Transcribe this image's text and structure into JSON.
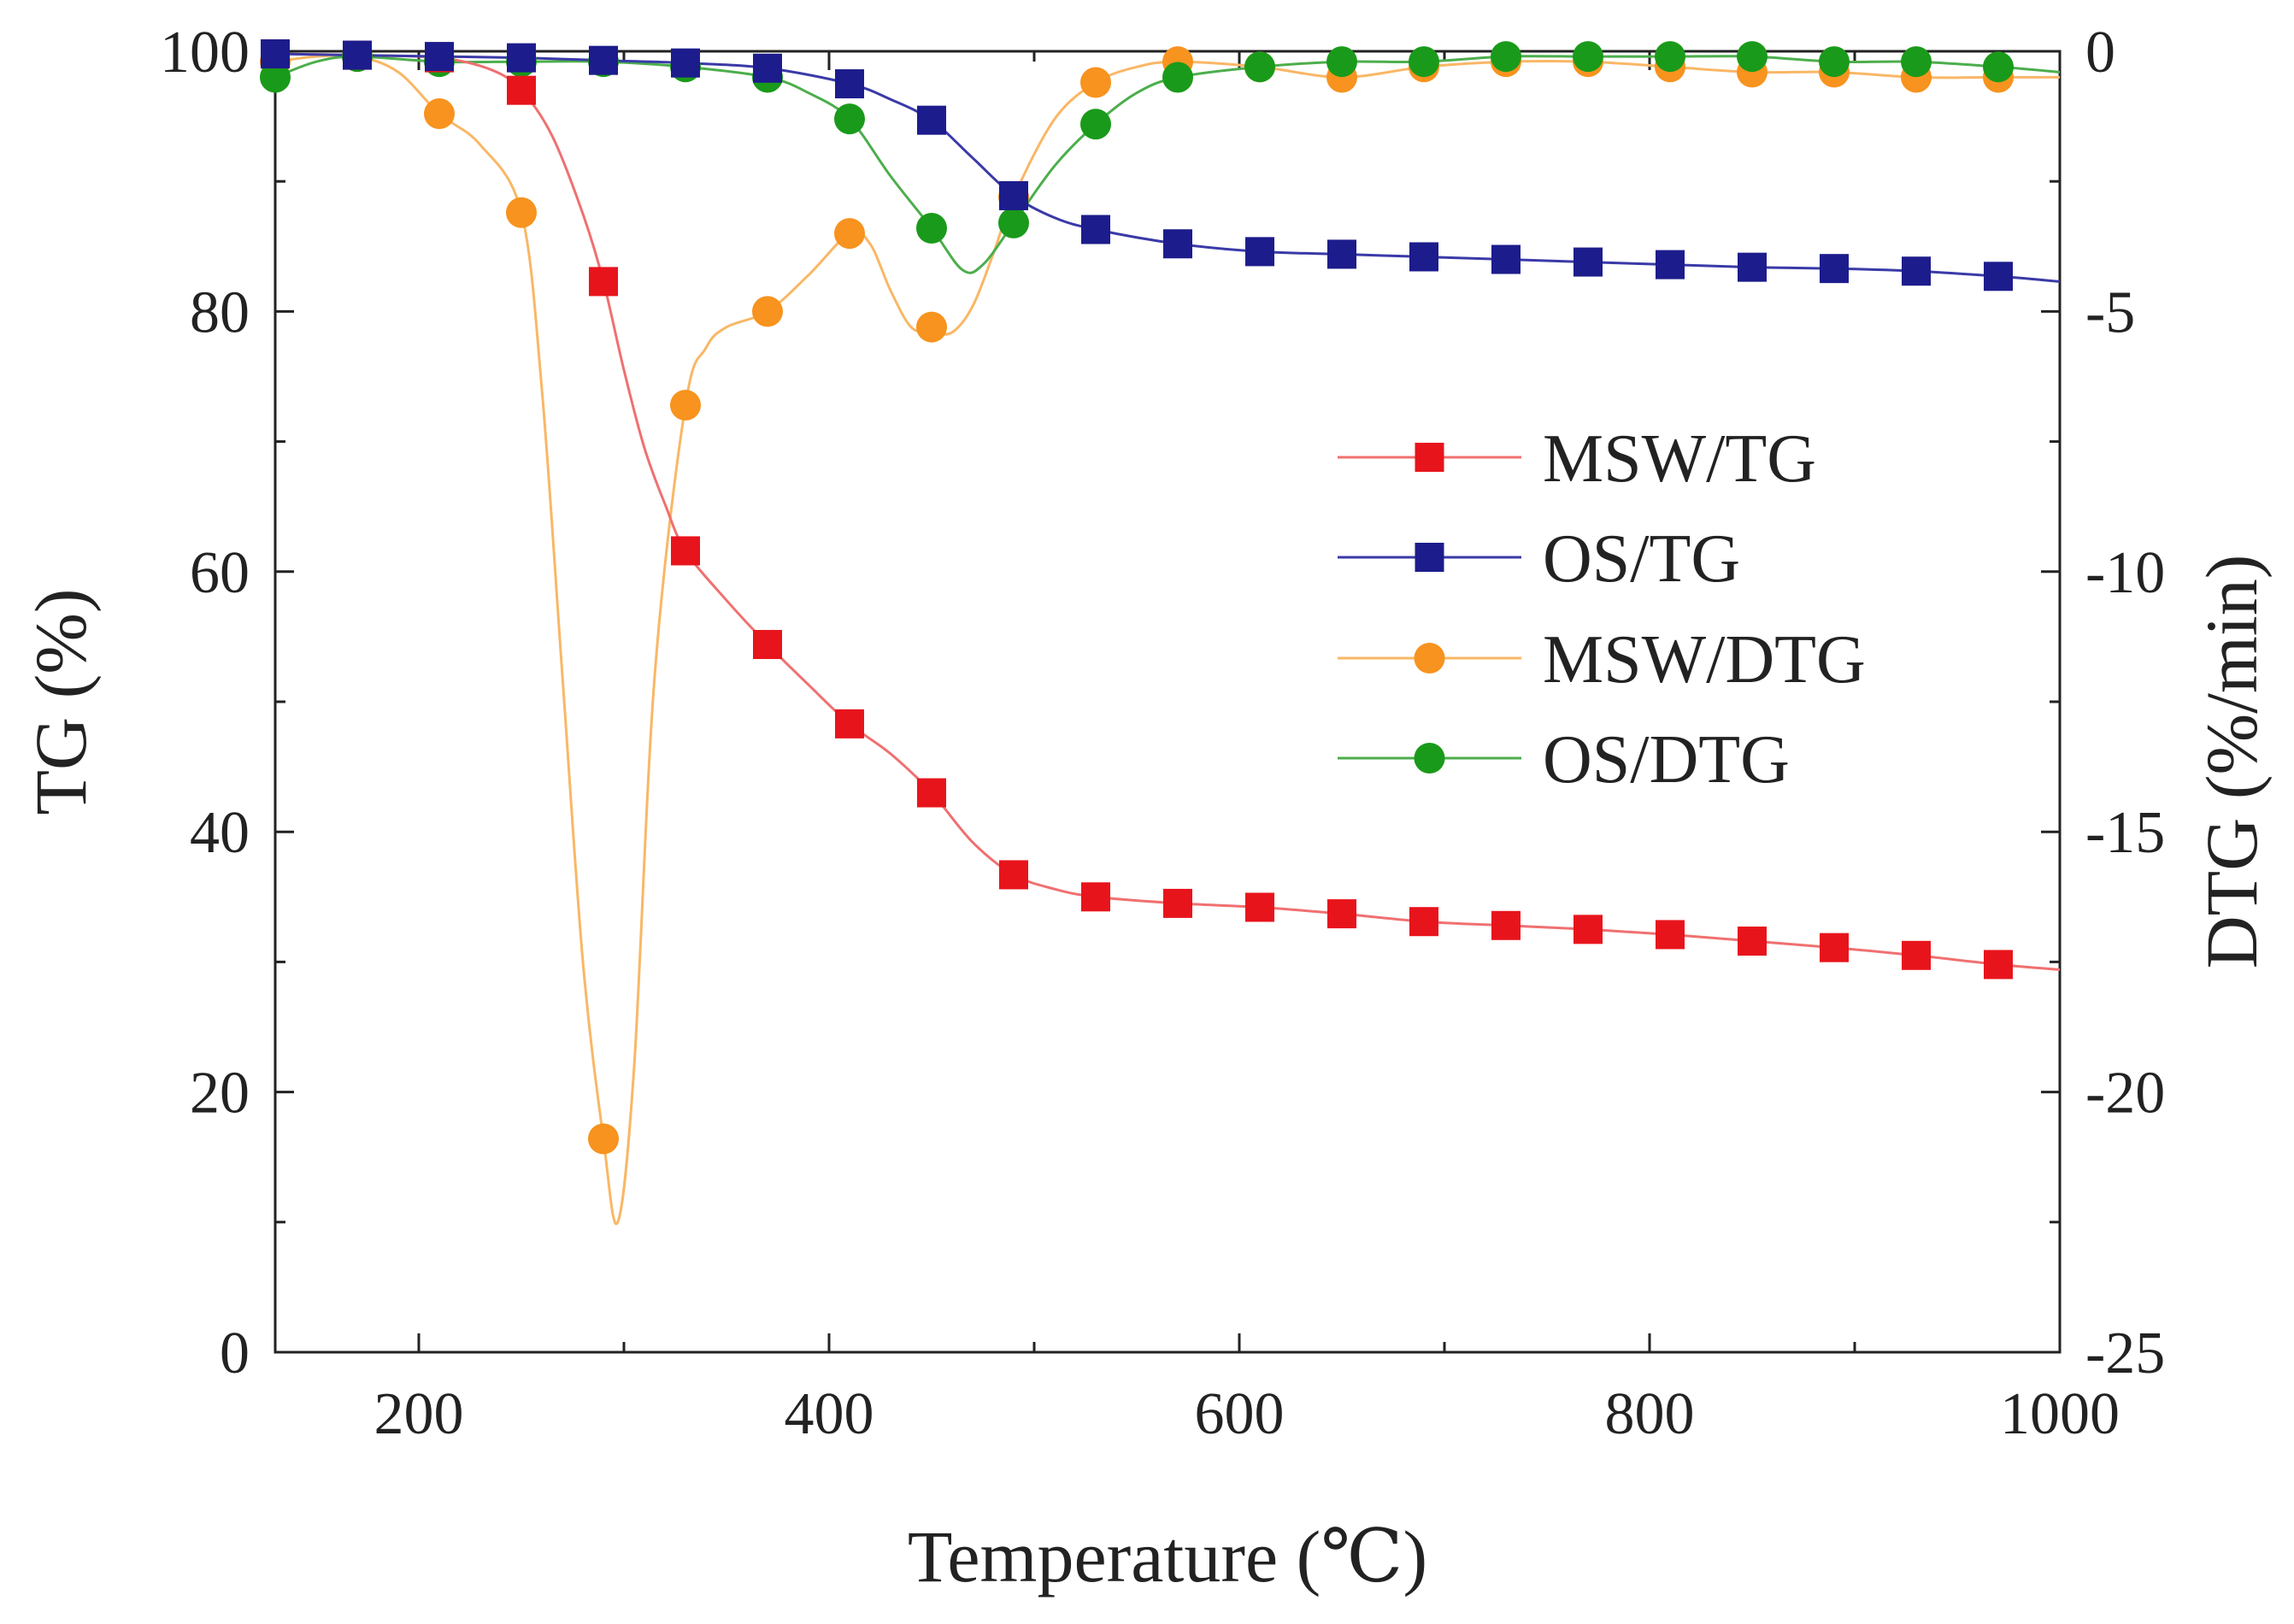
{
  "chart_data": {
    "type": "line",
    "xlabel": "Temperature (℃)",
    "ylabel_left": "TG (%)",
    "ylabel_right": "DTG (%/min)",
    "xlim": [
      130,
      1000
    ],
    "ylim_left": [
      0,
      100
    ],
    "ylim_right": [
      -25,
      0
    ],
    "x_ticks": [
      200,
      400,
      600,
      800,
      1000
    ],
    "y_left_ticks": [
      0,
      20,
      40,
      60,
      80,
      100
    ],
    "y_right_ticks": [
      0,
      -5,
      -10,
      -15,
      -20,
      -25
    ],
    "grid": false,
    "legend_position": "center-right",
    "series": [
      {
        "name": "MSW/TG",
        "axis": "left",
        "marker": "square",
        "color": "#e8141c",
        "line_color": "#f07070",
        "x": [
          130,
          170,
          210,
          250,
          290,
          330,
          370,
          410,
          450,
          490,
          530,
          570,
          610,
          650,
          690,
          730,
          770,
          810,
          850,
          890,
          930,
          970
        ],
        "values": [
          99.8,
          99.7,
          99.5,
          97.0,
          82.3,
          61.6,
          54.4,
          48.3,
          43.0,
          36.7,
          35.0,
          34.5,
          34.2,
          33.7,
          33.1,
          32.8,
          32.5,
          32.1,
          31.6,
          31.1,
          30.5,
          29.8
        ],
        "curve_x": [
          130,
          170,
          210,
          235,
          250,
          265,
          280,
          290,
          300,
          310,
          320,
          330,
          350,
          370,
          390,
          410,
          430,
          450,
          470,
          490,
          510,
          530,
          570,
          610,
          650,
          690,
          730,
          770,
          810,
          850,
          890,
          930,
          970,
          1000
        ],
        "curve": [
          99.8,
          99.7,
          99.5,
          98.6,
          97.0,
          93.5,
          87.5,
          82.3,
          75.5,
          69.5,
          65.2,
          61.6,
          57.8,
          54.4,
          51.3,
          48.3,
          46.0,
          43.0,
          39.2,
          36.7,
          35.6,
          35.0,
          34.5,
          34.2,
          33.7,
          33.1,
          32.8,
          32.5,
          32.1,
          31.6,
          31.1,
          30.5,
          29.8,
          29.4
        ]
      },
      {
        "name": "OS/TG",
        "axis": "left",
        "marker": "square",
        "color": "#1c1c8c",
        "line_color": "#3a3aa8",
        "x": [
          130,
          170,
          210,
          250,
          290,
          330,
          370,
          410,
          450,
          490,
          530,
          570,
          610,
          650,
          690,
          730,
          770,
          810,
          850,
          890,
          930,
          970
        ],
        "values": [
          99.8,
          99.7,
          99.6,
          99.5,
          99.3,
          99.1,
          98.7,
          97.5,
          94.7,
          88.9,
          86.3,
          85.2,
          84.6,
          84.4,
          84.2,
          84.0,
          83.8,
          83.6,
          83.4,
          83.3,
          83.1,
          82.7
        ],
        "curve_x": [
          130,
          170,
          210,
          250,
          290,
          330,
          370,
          410,
          430,
          450,
          470,
          490,
          510,
          530,
          570,
          610,
          650,
          690,
          730,
          770,
          810,
          850,
          890,
          930,
          970,
          1000
        ],
        "curve": [
          99.8,
          99.7,
          99.6,
          99.5,
          99.3,
          99.1,
          98.7,
          97.5,
          96.3,
          94.7,
          91.8,
          88.9,
          87.2,
          86.3,
          85.2,
          84.6,
          84.4,
          84.2,
          84.0,
          83.8,
          83.6,
          83.4,
          83.3,
          83.1,
          82.7,
          82.3
        ]
      },
      {
        "name": "MSW/DTG",
        "axis": "right",
        "marker": "circle",
        "color": "#f7931e",
        "line_color": "#f9b766",
        "x": [
          130,
          170,
          210,
          250,
          290,
          330,
          370,
          410,
          450,
          490,
          530,
          570,
          610,
          650,
          690,
          730,
          770,
          810,
          850,
          890,
          930,
          970
        ],
        "values": [
          -0.2,
          -0.1,
          -1.2,
          -3.1,
          -20.9,
          -6.8,
          -5.0,
          -3.5,
          -5.3,
          -2.8,
          -0.6,
          -0.2,
          -0.3,
          -0.5,
          -0.3,
          -0.2,
          -0.2,
          -0.3,
          -0.4,
          -0.4,
          -0.5,
          -0.5
        ],
        "curve_x": [
          130,
          150,
          170,
          190,
          210,
          230,
          250,
          260,
          270,
          280,
          290,
          297,
          305,
          315,
          330,
          340,
          350,
          370,
          390,
          410,
          420,
          430,
          440,
          450,
          460,
          470,
          480,
          490,
          510,
          530,
          550,
          570,
          610,
          650,
          690,
          730,
          770,
          810,
          850,
          890,
          930,
          970,
          1000
        ],
        "curve": [
          -0.2,
          -0.1,
          -0.1,
          -0.4,
          -1.2,
          -1.8,
          -3.1,
          -6.5,
          -12.0,
          -17.5,
          -20.9,
          -22.5,
          -19.5,
          -12.0,
          -6.8,
          -5.7,
          -5.3,
          -5.0,
          -4.3,
          -3.5,
          -3.7,
          -4.6,
          -5.3,
          -5.4,
          -5.4,
          -4.9,
          -3.9,
          -2.8,
          -1.3,
          -0.6,
          -0.3,
          -0.2,
          -0.3,
          -0.5,
          -0.3,
          -0.2,
          -0.2,
          -0.3,
          -0.4,
          -0.4,
          -0.5,
          -0.5,
          -0.5
        ]
      },
      {
        "name": "OS/DTG",
        "axis": "right",
        "marker": "circle",
        "color": "#1a9a1a",
        "line_color": "#4cae4c",
        "x": [
          130,
          170,
          210,
          250,
          290,
          330,
          370,
          410,
          450,
          490,
          530,
          570,
          610,
          650,
          690,
          730,
          770,
          810,
          850,
          890,
          930,
          970
        ],
        "values": [
          -0.5,
          -0.1,
          -0.2,
          -0.2,
          -0.2,
          -0.3,
          -0.5,
          -1.3,
          -3.4,
          -3.3,
          -1.4,
          -0.5,
          -0.3,
          -0.2,
          -0.2,
          -0.1,
          -0.1,
          -0.1,
          -0.1,
          -0.2,
          -0.2,
          -0.3
        ],
        "curve_x": [
          130,
          150,
          170,
          210,
          250,
          290,
          330,
          370,
          390,
          410,
          430,
          450,
          465,
          475,
          490,
          510,
          530,
          550,
          570,
          610,
          650,
          690,
          730,
          770,
          810,
          850,
          890,
          930,
          970,
          1000
        ],
        "curve": [
          -0.5,
          -0.2,
          -0.1,
          -0.2,
          -0.2,
          -0.2,
          -0.3,
          -0.5,
          -0.8,
          -1.3,
          -2.4,
          -3.4,
          -4.2,
          -4.1,
          -3.3,
          -2.2,
          -1.4,
          -0.8,
          -0.5,
          -0.3,
          -0.2,
          -0.2,
          -0.1,
          -0.1,
          -0.1,
          -0.1,
          -0.2,
          -0.2,
          -0.3,
          -0.4
        ]
      }
    ]
  }
}
